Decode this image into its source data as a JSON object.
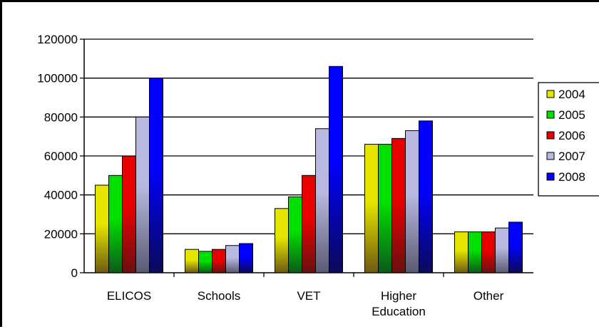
{
  "chart_data": {
    "type": "bar",
    "title": "",
    "xlabel": "",
    "ylabel": "",
    "categories": [
      [
        "ELICOS"
      ],
      [
        "Schools"
      ],
      [
        "VET"
      ],
      [
        "Higher",
        "Education"
      ],
      [
        "Other"
      ]
    ],
    "series": [
      {
        "name": "2004",
        "values": [
          45000,
          12000,
          33000,
          66000,
          21000
        ],
        "color": "#e5e500",
        "gradient_to": "#6e5a12"
      },
      {
        "name": "2005",
        "values": [
          50000,
          11000,
          39000,
          66000,
          21000
        ],
        "color": "#00e000",
        "gradient_to": "#0a5a1a"
      },
      {
        "name": "2006",
        "values": [
          60000,
          12000,
          50000,
          69000,
          21000
        ],
        "color": "#e80000",
        "gradient_to": "#6a1010"
      },
      {
        "name": "2007",
        "values": [
          80000,
          14000,
          74000,
          73000,
          23000
        ],
        "color": "#b8b8e0",
        "gradient_to": "#5a5a72"
      },
      {
        "name": "2008",
        "values": [
          100000,
          15000,
          106000,
          78000,
          26000
        ],
        "color": "#0000ff",
        "gradient_to": "#0a0a5a"
      }
    ],
    "ylim": [
      0,
      120000
    ],
    "yticks": [
      0,
      20000,
      40000,
      60000,
      80000,
      100000,
      120000
    ],
    "ytick_labels": [
      "0",
      "20000",
      "40000",
      "60000",
      "80000",
      "100000",
      "120000"
    ],
    "grid": true,
    "legend_position": "right"
  }
}
